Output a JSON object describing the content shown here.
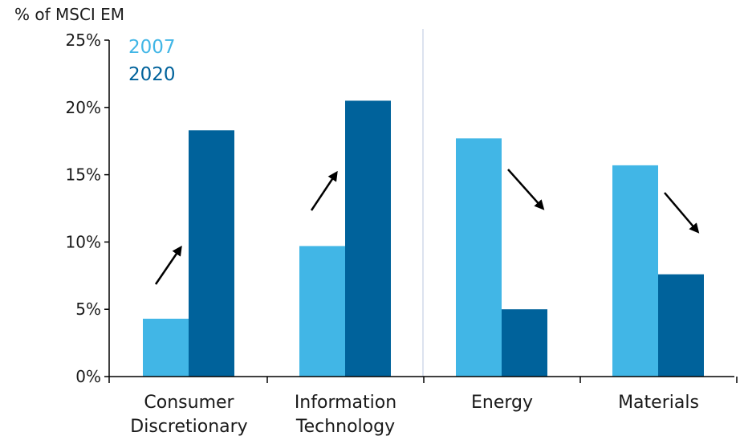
{
  "chart_data": {
    "type": "bar",
    "ylabel": "% of MSCI EM",
    "categories": [
      [
        "Consumer",
        "Discretionary"
      ],
      [
        "Information",
        "Technology"
      ],
      [
        "Energy"
      ],
      [
        "Materials"
      ]
    ],
    "series": [
      {
        "name": "2007",
        "values": [
          4.3,
          9.7,
          17.7,
          15.7
        ]
      },
      {
        "name": "2020",
        "values": [
          18.3,
          20.5,
          5.0,
          7.6
        ]
      }
    ],
    "ylim": [
      0,
      25
    ],
    "yticks": [
      "0%",
      "5%",
      "10%",
      "15%",
      "20%",
      "25%"
    ],
    "annotations": [
      "up-arrow",
      "up-arrow",
      "down-arrow",
      "down-arrow"
    ],
    "colors": {
      "2007": "#41b6e6",
      "2020": "#00629b"
    },
    "grid": false,
    "legend_position": "top-left"
  }
}
